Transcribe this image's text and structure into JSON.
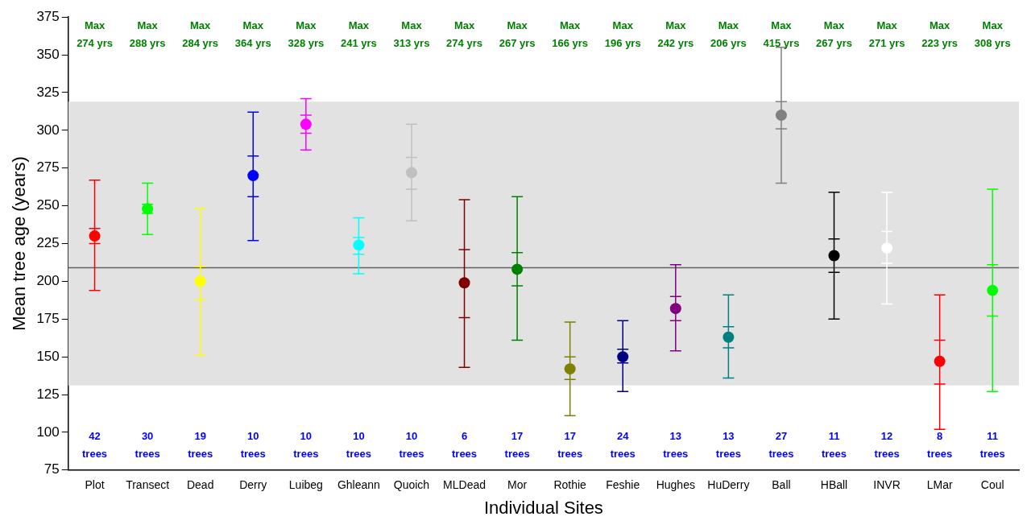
{
  "chart_data": {
    "type": "box",
    "xlabel": "Individual Sites",
    "ylabel": "Mean tree age (years)",
    "categories": [
      "Plot",
      "Transect",
      "Dead",
      "Derry",
      "Luibeg",
      "Ghleann",
      "Quoich",
      "MLDead",
      "Mor",
      "Rothie",
      "Feshie",
      "Hughes",
      "HuDerry",
      "Ball",
      "HBall",
      "INVR",
      "LMar",
      "Coul"
    ],
    "boxes": [
      {
        "low": 194,
        "q1": 225,
        "median": 230,
        "q3": 235,
        "high": 267
      },
      {
        "low": 231,
        "q1": 245,
        "median": 248,
        "q3": 251,
        "high": 265
      },
      {
        "low": 151,
        "q1": 188,
        "median": 200,
        "q3": 210,
        "high": 248
      },
      {
        "low": 227,
        "q1": 256,
        "median": 270,
        "q3": 283,
        "high": 312
      },
      {
        "low": 287,
        "q1": 298,
        "median": 304,
        "q3": 310,
        "high": 321
      },
      {
        "low": 205,
        "q1": 218,
        "median": 224,
        "q3": 229,
        "high": 242
      },
      {
        "low": 240,
        "q1": 261,
        "median": 272,
        "q3": 282,
        "high": 304
      },
      {
        "low": 143,
        "q1": 176,
        "median": 199,
        "q3": 221,
        "high": 254
      },
      {
        "low": 161,
        "q1": 197,
        "median": 208,
        "q3": 219,
        "high": 256
      },
      {
        "low": 111,
        "q1": 135,
        "median": 142,
        "q3": 150,
        "high": 173
      },
      {
        "low": 127,
        "q1": 146,
        "median": 150,
        "q3": 155,
        "high": 174
      },
      {
        "low": 154,
        "q1": 174,
        "median": 182,
        "q3": 190,
        "high": 211
      },
      {
        "low": 136,
        "q1": 156,
        "median": 163,
        "q3": 170,
        "high": 191
      },
      {
        "low": 265,
        "q1": 301,
        "median": 310,
        "q3": 319,
        "high": 355
      },
      {
        "low": 175,
        "q1": 206,
        "median": 217,
        "q3": 228,
        "high": 259
      },
      {
        "low": 185,
        "q1": 212,
        "median": 222,
        "q3": 233,
        "high": 259
      },
      {
        "low": 102,
        "q1": 132,
        "median": 147,
        "q3": 161,
        "high": 191
      },
      {
        "low": 127,
        "q1": 177,
        "median": 194,
        "q3": 211,
        "high": 261
      }
    ],
    "colors": [
      "#ff0000",
      "#00ff00",
      "#ffff00",
      "#0000ff",
      "#ff00ff",
      "#00ffff",
      "#c0c0c0",
      "#800000",
      "#008000",
      "#808000",
      "#000080",
      "#800080",
      "#008080",
      "#808080",
      "#000000",
      "#ffffff",
      "#ff0000",
      "#00ff00"
    ],
    "marker": "circle",
    "ylim": [
      75,
      375
    ],
    "yticks": [
      75,
      100,
      125,
      150,
      175,
      200,
      225,
      250,
      275,
      300,
      325,
      350,
      375
    ],
    "grid": false,
    "legend": false,
    "ref_lines": [
      {
        "axis": "y",
        "value": 209,
        "color": "#606060"
      }
    ],
    "bands": [
      {
        "axis": "y",
        "from": 131,
        "to": 319,
        "color": "#e2e2e2"
      }
    ],
    "annotations": [
      "Max 274 yrs",
      "Max 288 yrs",
      "Max 284 yrs",
      "Max 364 yrs",
      "Max 328 yrs",
      "Max 241 yrs",
      "Max 313 yrs",
      "Max 274 yrs",
      "Max 267 yrs",
      "Max 166 yrs",
      "Max 196 yrs",
      "Max 242 yrs",
      "Max 206 yrs",
      "Max 415 yrs",
      "Max 267 yrs",
      "Max 271 yrs",
      "Max 223 yrs",
      "Max 308 yrs",
      "42 trees",
      "30 trees",
      "19 trees",
      "10 trees",
      "10 trees",
      "10 trees",
      "10 trees",
      "6 trees",
      "17 trees",
      "17 trees",
      "24 trees",
      "13 trees",
      "13 trees",
      "27 trees",
      "11 trees",
      "12 trees",
      "8 trees",
      "11 trees"
    ]
  }
}
